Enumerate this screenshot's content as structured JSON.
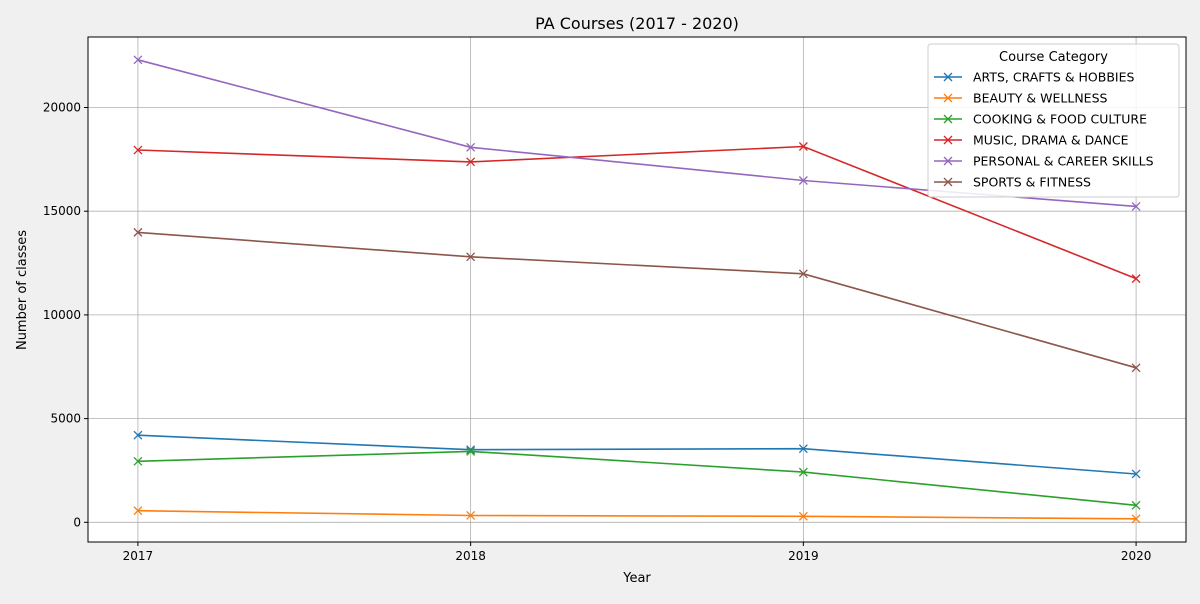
{
  "chart_data": {
    "type": "line",
    "title": "PA Courses (2017 - 2020)",
    "xlabel": "Year",
    "ylabel": "Number of classes",
    "x": [
      2017,
      2018,
      2019,
      2020
    ],
    "x_tick_labels": [
      "2017",
      "2018",
      "2019",
      "2020"
    ],
    "y_ticks": [
      0,
      5000,
      10000,
      15000,
      20000
    ],
    "y_tick_labels": [
      "0",
      "5000",
      "10000",
      "15000",
      "20000"
    ],
    "xlim": [
      2016.85,
      2020.15
    ],
    "ylim": [
      -950,
      23400
    ],
    "grid": true,
    "legend": {
      "title": "Course Category",
      "placement": "top-right"
    },
    "marker": "x",
    "series": [
      {
        "name": "ARTS, CRAFTS & HOBBIES",
        "color": "#1f77b4",
        "values": [
          4200,
          3500,
          3550,
          2330
        ]
      },
      {
        "name": "BEAUTY & WELLNESS",
        "color": "#ff7f0e",
        "values": [
          560,
          330,
          290,
          170
        ]
      },
      {
        "name": "COOKING & FOOD CULTURE",
        "color": "#2ca02c",
        "values": [
          2940,
          3420,
          2420,
          820
        ]
      },
      {
        "name": "MUSIC, DRAMA & DANCE",
        "color": "#d62728",
        "values": [
          17950,
          17380,
          18120,
          11750
        ]
      },
      {
        "name": "PERSONAL & CAREER SKILLS",
        "color": "#9467bd",
        "values": [
          22300,
          18080,
          16480,
          15230
        ]
      },
      {
        "name": "SPORTS & FITNESS",
        "color": "#8c564b",
        "values": [
          13980,
          12800,
          11980,
          7450
        ]
      }
    ]
  }
}
